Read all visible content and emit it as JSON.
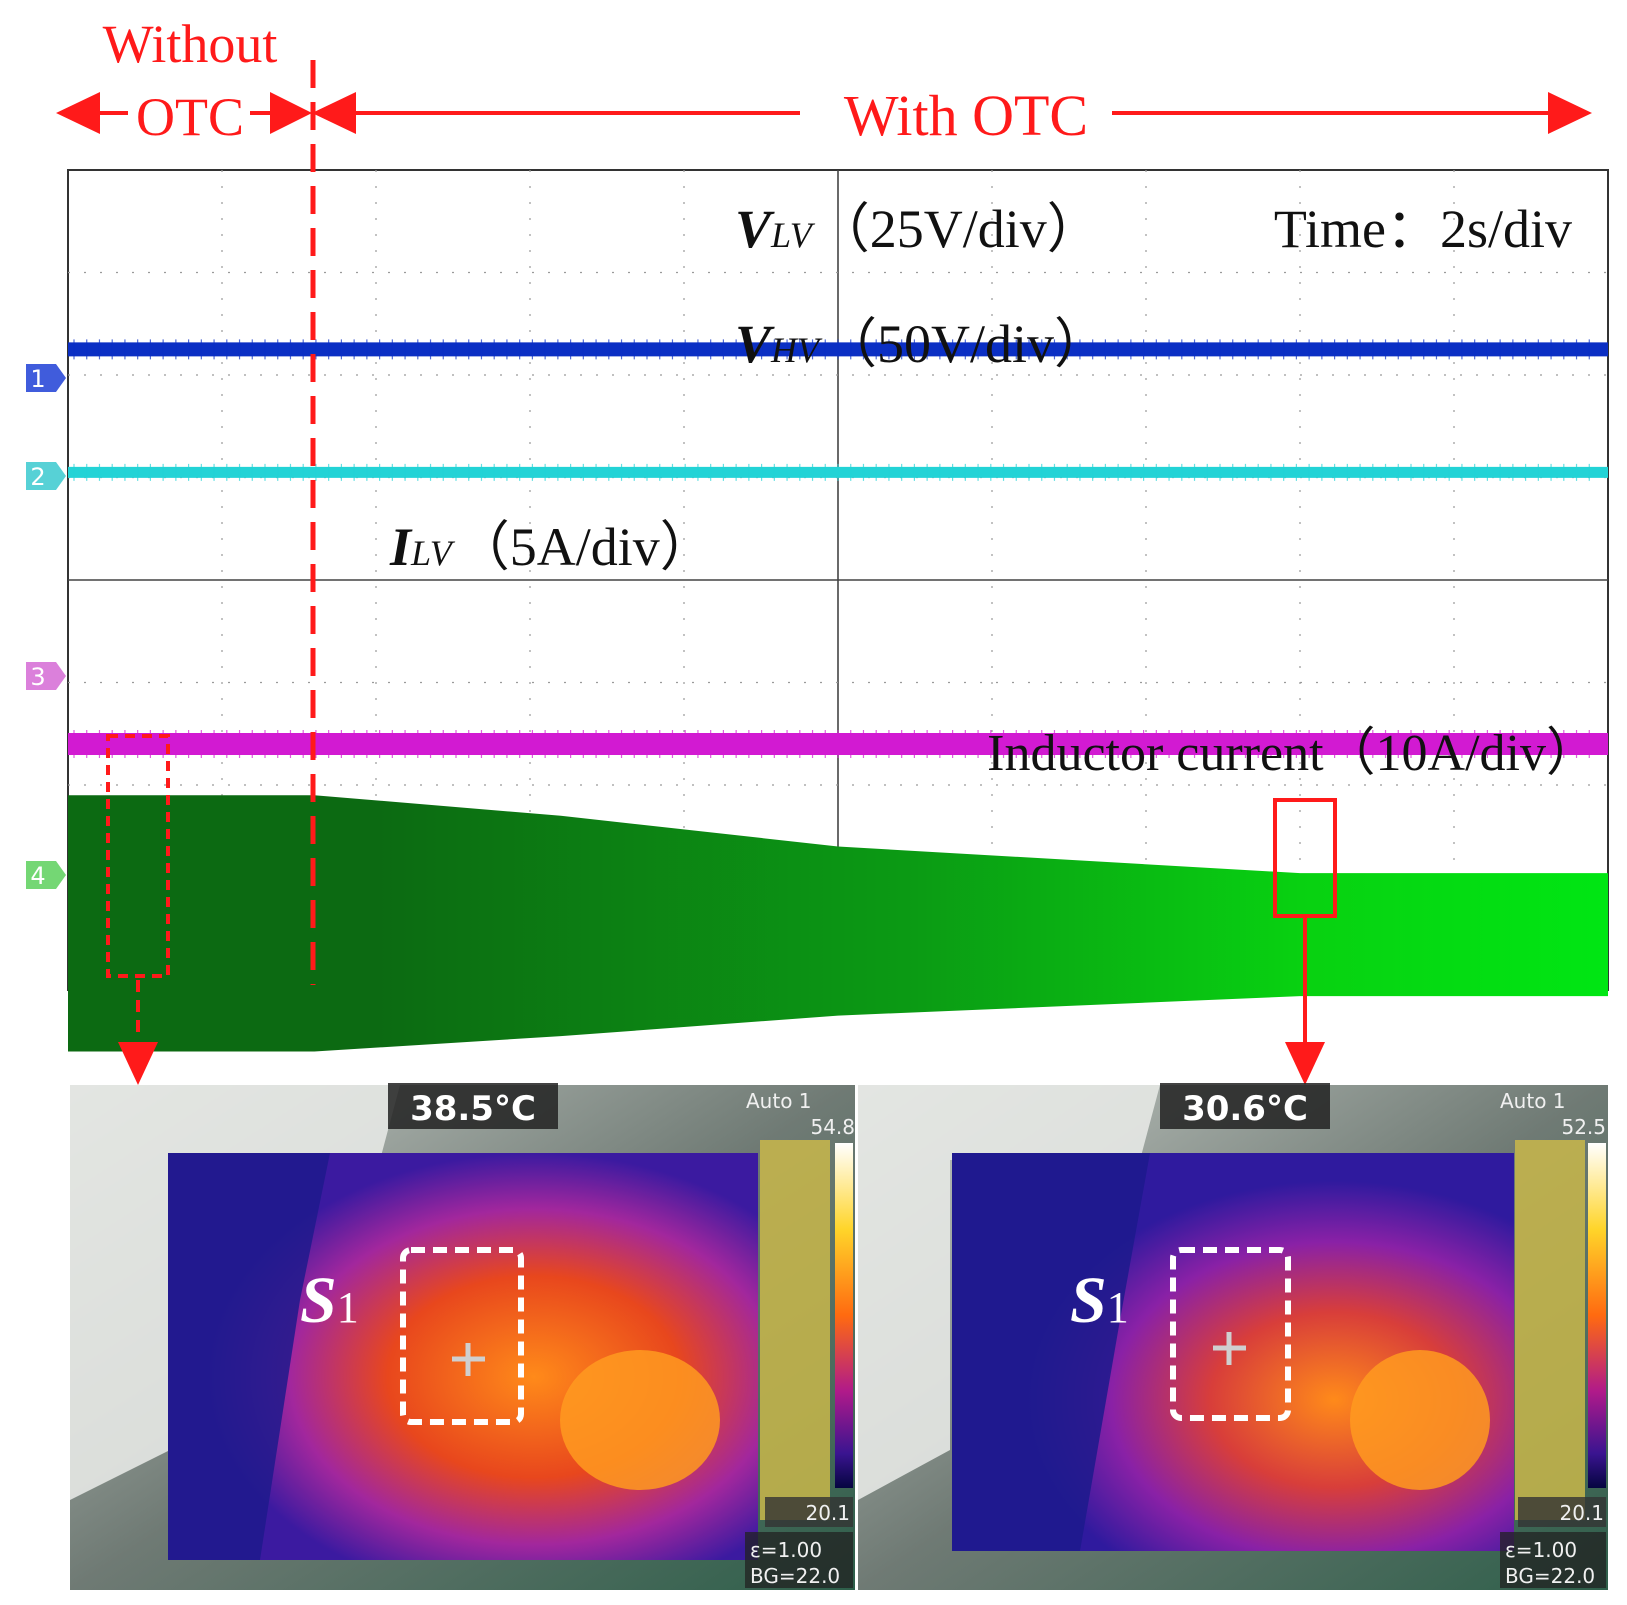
{
  "header": {
    "without_line1": "Without",
    "without_line2": "OTC",
    "with_otc": "With OTC"
  },
  "colors": {
    "annotation": "#ff1a1a",
    "ch1": "#0b2fc4",
    "ch2": "#23d3d6",
    "ch3": "#d21ad2",
    "ch4": "#0aa60a"
  },
  "chart_data": {
    "type": "line",
    "title": "",
    "time_scale": "2s/div",
    "xlabel": "Time",
    "x_divisions": 10,
    "y_divisions": 8,
    "labels": {
      "vlv_symbol": "V",
      "vlv_sub": "LV",
      "vlv_scale": "（25V/div）",
      "time_label": "Time：2s/div",
      "vhv_symbol": "V",
      "vhv_sub": "HV",
      "vhv_scale": "（50V/div）",
      "ilv_symbol": "I",
      "ilv_sub": "LV",
      "ilv_scale": "（5A/div）",
      "inductor": "Inductor current（10A/div）"
    },
    "channel_markers": [
      "1",
      "2",
      "3",
      "4"
    ],
    "otc_enabled_at_div": 1.6,
    "series": [
      {
        "name": "V_LV",
        "channel": 1,
        "scale": "25V/div",
        "level_div": 2.25,
        "behavior": "constant"
      },
      {
        "name": "V_HV",
        "channel": 2,
        "scale": "50V/div",
        "level_div": 1.05,
        "behavior": "constant"
      },
      {
        "name": "I_LV",
        "channel": 3,
        "scale": "5A/div",
        "level_div": -1.6,
        "behavior": "constant"
      },
      {
        "name": "Inductor current",
        "channel": 4,
        "scale": "10A/div",
        "behavior": "envelope",
        "x_div": [
          0,
          1.6,
          3.2,
          5.0,
          8.0,
          10.0
        ],
        "upper_div": [
          -2.1,
          -2.1,
          -2.3,
          -2.6,
          -2.86,
          -2.86
        ],
        "lower_div": [
          -4.6,
          -4.6,
          -4.45,
          -4.25,
          -4.06,
          -4.06
        ]
      }
    ]
  },
  "thermal_left": {
    "temp": "38.5°C",
    "mode": "Auto 1",
    "max": "54.8",
    "min": "20.1",
    "emissivity": "ε=1.00",
    "bg": "BG=22.0",
    "region_symbol": "S",
    "region_sub": "1"
  },
  "thermal_right": {
    "temp": "30.6°C",
    "mode": "Auto 1",
    "max": "52.5",
    "min": "20.1",
    "emissivity": "ε=1.00",
    "bg": "BG=22.0",
    "region_symbol": "S",
    "region_sub": "1"
  }
}
